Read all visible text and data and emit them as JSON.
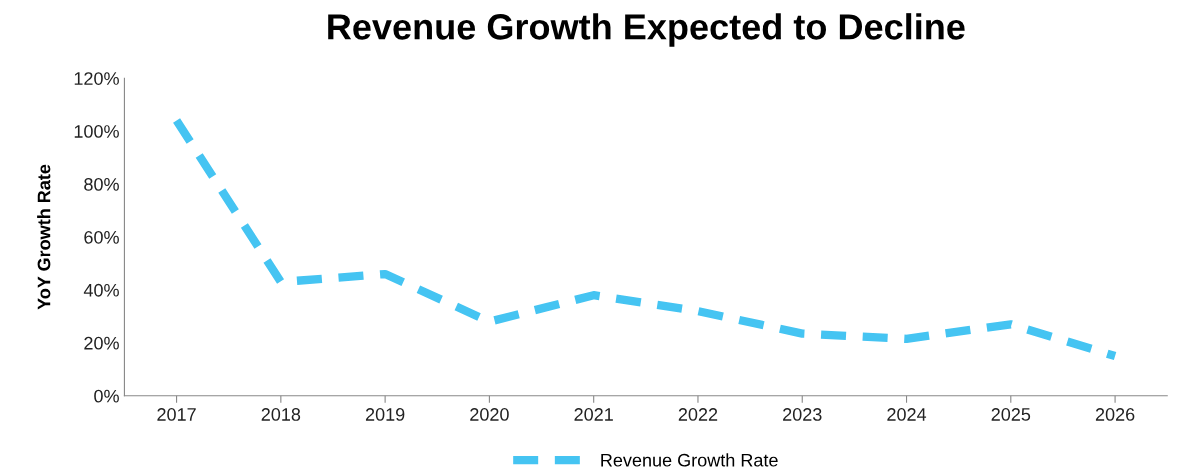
{
  "chart_data": {
    "type": "line",
    "title": "Revenue Growth Expected to Decline",
    "ylabel": "YoY Growth Rate",
    "categories": [
      "2017",
      "2018",
      "2019",
      "2020",
      "2021",
      "2022",
      "2023",
      "2024",
      "2025",
      "2026"
    ],
    "series": [
      {
        "name": "Revenue Growth Rate",
        "color": "#45c4f2",
        "values": [
          104,
          43,
          46,
          28,
          38,
          32,
          23.5,
          21.5,
          27,
          15
        ]
      }
    ],
    "ylim": [
      0,
      120
    ],
    "yticks": [
      {
        "value": 0,
        "label": "0%"
      },
      {
        "value": 20,
        "label": "20%"
      },
      {
        "value": 40,
        "label": "40%"
      },
      {
        "value": 60,
        "label": "60%"
      },
      {
        "value": 80,
        "label": "80%"
      },
      {
        "value": 100,
        "label": "100%"
      },
      {
        "value": 120,
        "label": "120%"
      }
    ],
    "grid": false,
    "legend": "bottom",
    "line_style": "dashed",
    "marker": "none"
  }
}
